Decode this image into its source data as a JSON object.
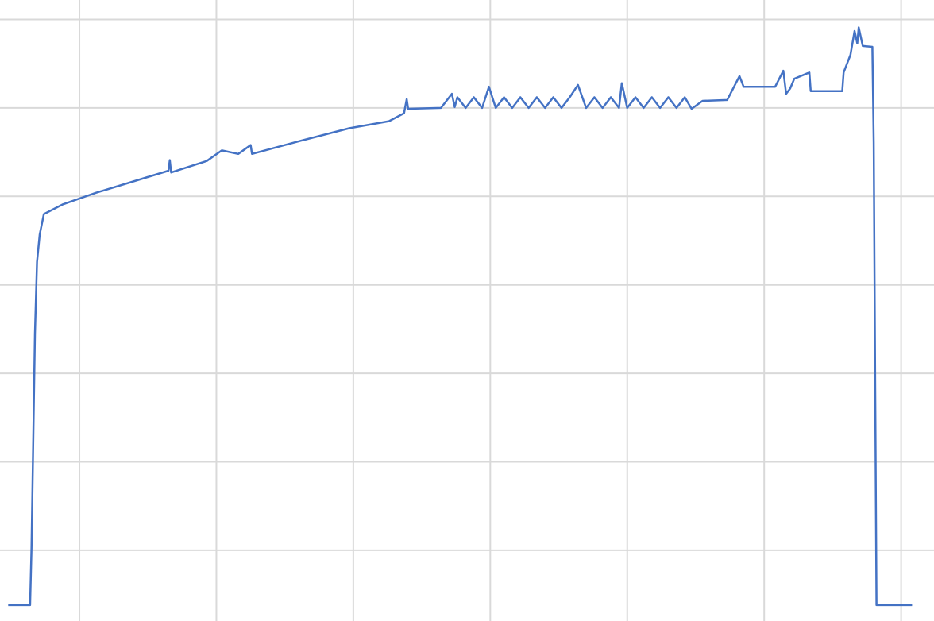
{
  "chart_data": {
    "type": "line",
    "x": [
      0.48,
      0.64,
      0.65,
      0.675,
      0.69,
      0.71,
      0.74,
      0.88,
      1.12,
      1.46,
      1.65,
      1.66,
      1.67,
      1.93,
      2.04,
      2.16,
      2.25,
      2.26,
      2.62,
      2.97,
      3.26,
      3.37,
      3.39,
      3.4,
      3.64,
      3.72,
      3.74,
      3.76,
      3.82,
      3.88,
      3.94,
      3.99,
      4.04,
      4.1,
      4.16,
      4.22,
      4.28,
      4.34,
      4.4,
      4.46,
      4.52,
      4.58,
      4.64,
      4.7,
      4.76,
      4.82,
      4.88,
      4.94,
      4.96,
      5.0,
      5.06,
      5.12,
      5.18,
      5.24,
      5.3,
      5.36,
      5.42,
      5.47,
      5.55,
      5.73,
      5.82,
      5.85,
      6.08,
      6.14,
      6.16,
      6.19,
      6.22,
      6.33,
      6.34,
      6.57,
      6.58,
      6.63,
      6.66,
      6.68,
      6.69,
      6.72,
      6.79,
      6.8,
      6.82,
      7.08
    ],
    "series": [
      {
        "color": "#4472c4",
        "values": [
          -0.62,
          -0.62,
          0.03,
          2.45,
          3.26,
          3.57,
          3.8,
          3.91,
          4.04,
          4.2,
          4.29,
          4.41,
          4.27,
          4.4,
          4.52,
          4.48,
          4.58,
          4.48,
          4.63,
          4.77,
          4.85,
          4.94,
          5.1,
          4.99,
          5.0,
          5.16,
          5.01,
          5.12,
          5.0,
          5.12,
          5.0,
          5.24,
          5.0,
          5.12,
          5.0,
          5.12,
          5.0,
          5.12,
          5.0,
          5.12,
          5.0,
          5.12,
          5.26,
          5.0,
          5.12,
          5.0,
          5.12,
          5.0,
          5.28,
          5.0,
          5.12,
          5.0,
          5.12,
          5.0,
          5.12,
          5.0,
          5.12,
          4.99,
          5.08,
          5.09,
          5.36,
          5.24,
          5.24,
          5.42,
          5.16,
          5.22,
          5.33,
          5.4,
          5.19,
          5.19,
          5.4,
          5.6,
          5.87,
          5.73,
          5.91,
          5.7,
          5.69,
          4.61,
          -0.62,
          -0.62
        ]
      }
    ],
    "xlim": [
      0.42,
      7.24
    ],
    "ylim": [
      -0.8,
      6.22
    ],
    "xticks": [
      1,
      2,
      3,
      4,
      5,
      6,
      7
    ],
    "yticks": [
      0,
      1,
      2,
      3,
      4,
      5,
      6
    ],
    "grid": true
  }
}
